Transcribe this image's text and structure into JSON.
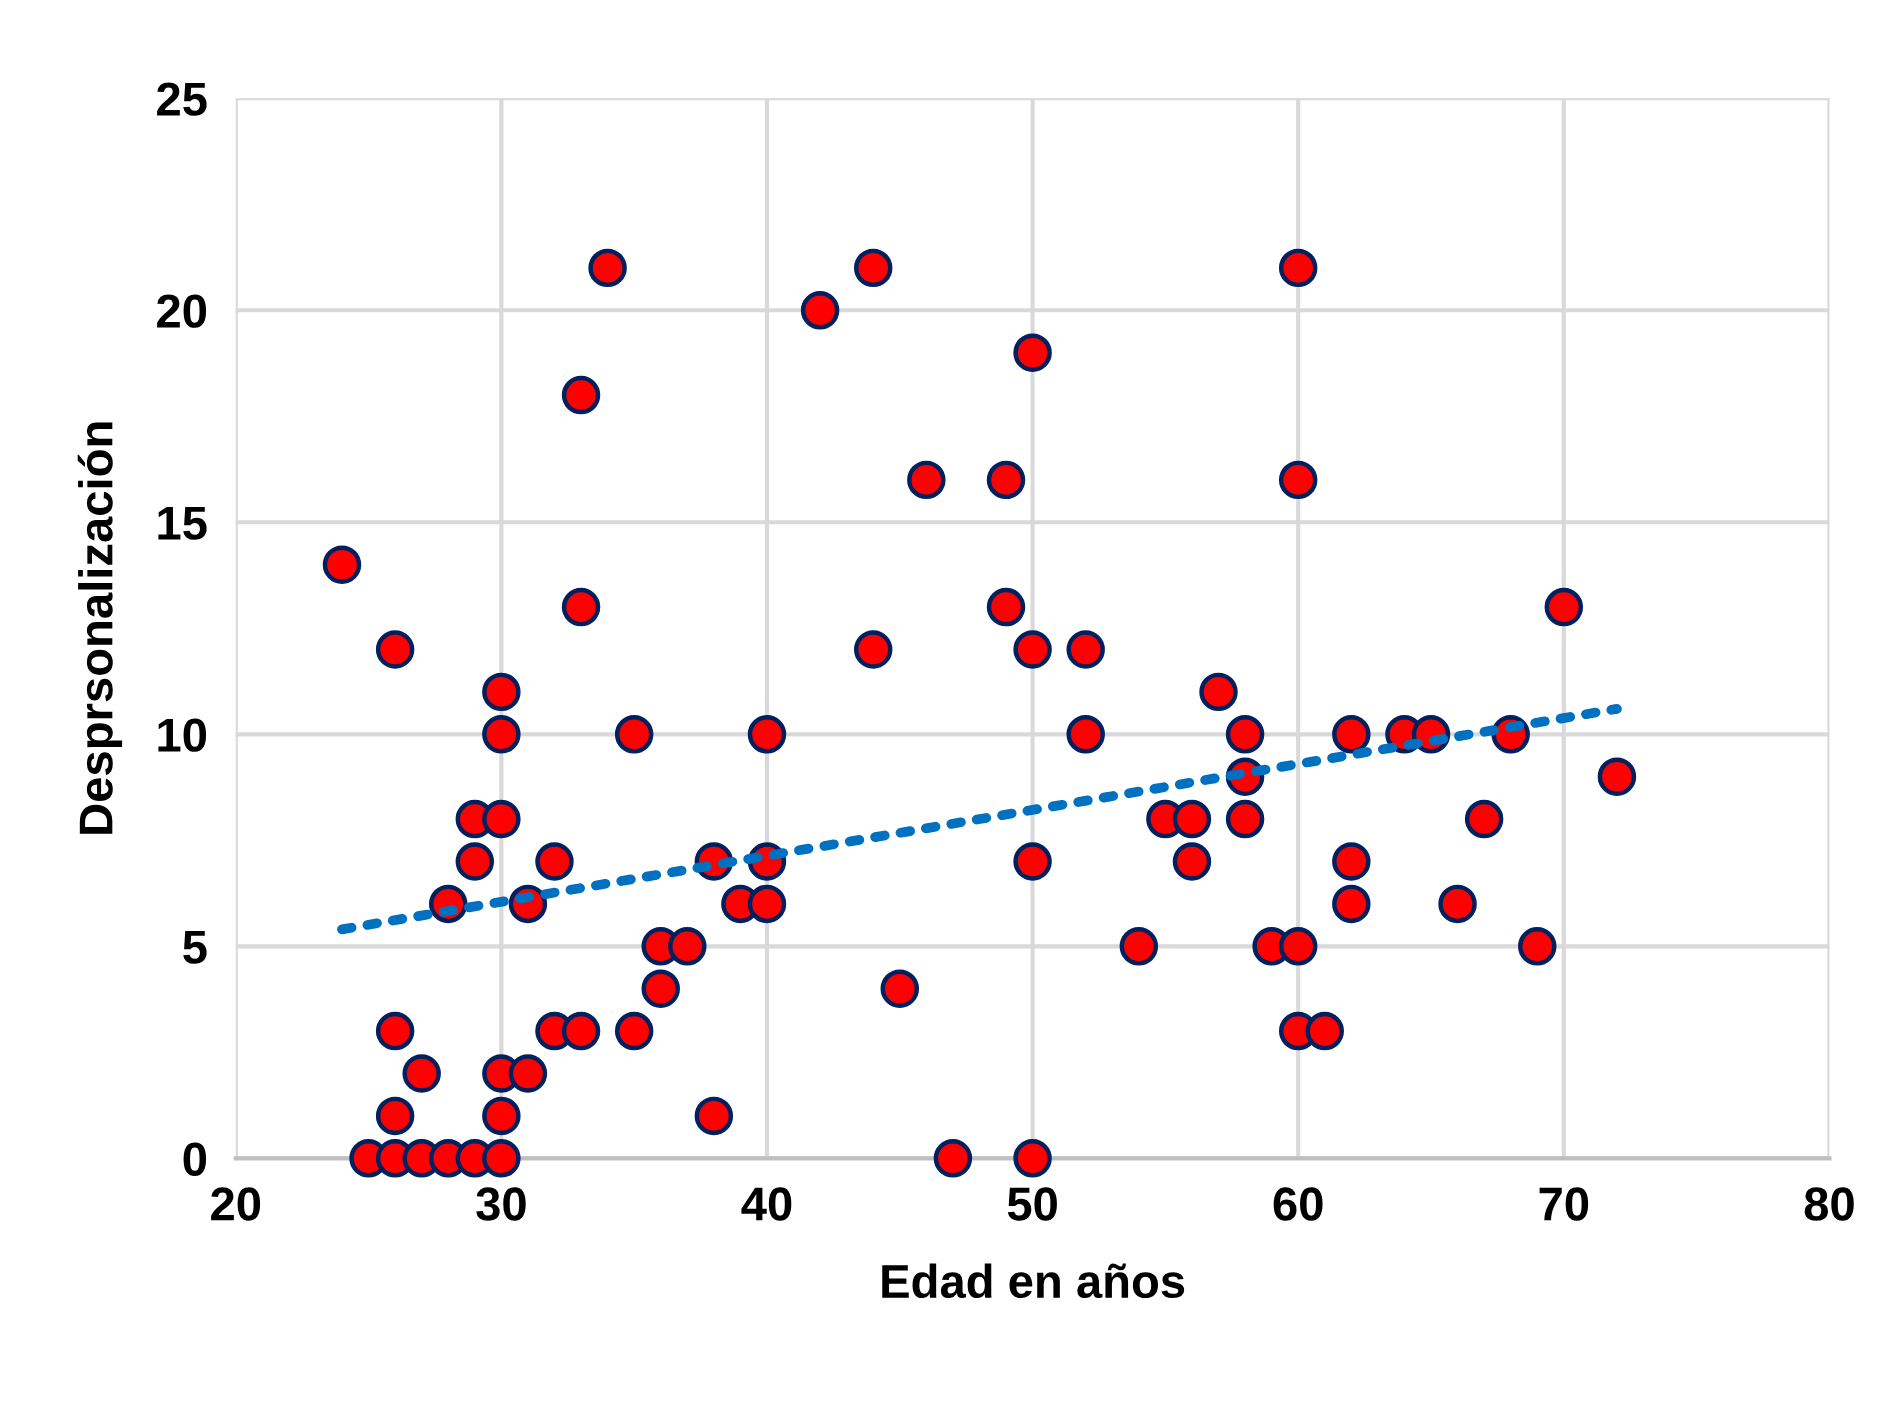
{
  "chart_data": {
    "type": "scatter",
    "xlabel": "Edad en años",
    "ylabel": "Desprsonalización",
    "xlim": [
      20,
      80
    ],
    "ylim": [
      0,
      25
    ],
    "xticks": [
      20,
      30,
      40,
      50,
      60,
      70,
      80
    ],
    "yticks": [
      0,
      5,
      10,
      15,
      20,
      25
    ],
    "grid": true,
    "marker": "circle",
    "series": [
      {
        "color": "#ff0000",
        "x": [
          24,
          26,
          26,
          26,
          25,
          26,
          27,
          28,
          29,
          30,
          27,
          28,
          29,
          29,
          30,
          30,
          30,
          30,
          30,
          31,
          31,
          32,
          32,
          33,
          33,
          33,
          34,
          35,
          35,
          36,
          36,
          37,
          38,
          38,
          39,
          40,
          40,
          40,
          42,
          44,
          44,
          45,
          46,
          47,
          49,
          49,
          50,
          50,
          50,
          50,
          52,
          52,
          54,
          55,
          56,
          56,
          57,
          58,
          58,
          58,
          59,
          60,
          60,
          61,
          60,
          60,
          62,
          62,
          62,
          64,
          65,
          66,
          67,
          68,
          69,
          70,
          72
        ],
        "values": [
          14,
          12,
          3,
          1,
          0,
          0,
          0,
          0,
          0,
          0,
          2,
          6,
          8,
          7,
          8,
          10,
          11,
          2,
          1,
          2,
          6,
          7,
          3,
          3,
          18,
          13,
          21,
          10,
          3,
          5,
          4,
          5,
          7,
          1,
          6,
          7,
          6,
          10,
          20,
          21,
          12,
          4,
          16,
          0,
          16,
          13,
          19,
          12,
          7,
          0,
          12,
          10,
          5,
          8,
          8,
          7,
          11,
          10,
          9,
          8,
          5,
          5,
          3,
          3,
          21,
          16,
          10,
          7,
          6,
          10,
          10,
          6,
          8,
          10,
          5,
          13,
          9
        ]
      },
      {
        "type": "line",
        "color": "#0070c0",
        "line_style": "dotted",
        "marker": "none",
        "x": [
          24,
          72
        ],
        "values": [
          5.4,
          10.6
        ]
      }
    ]
  }
}
